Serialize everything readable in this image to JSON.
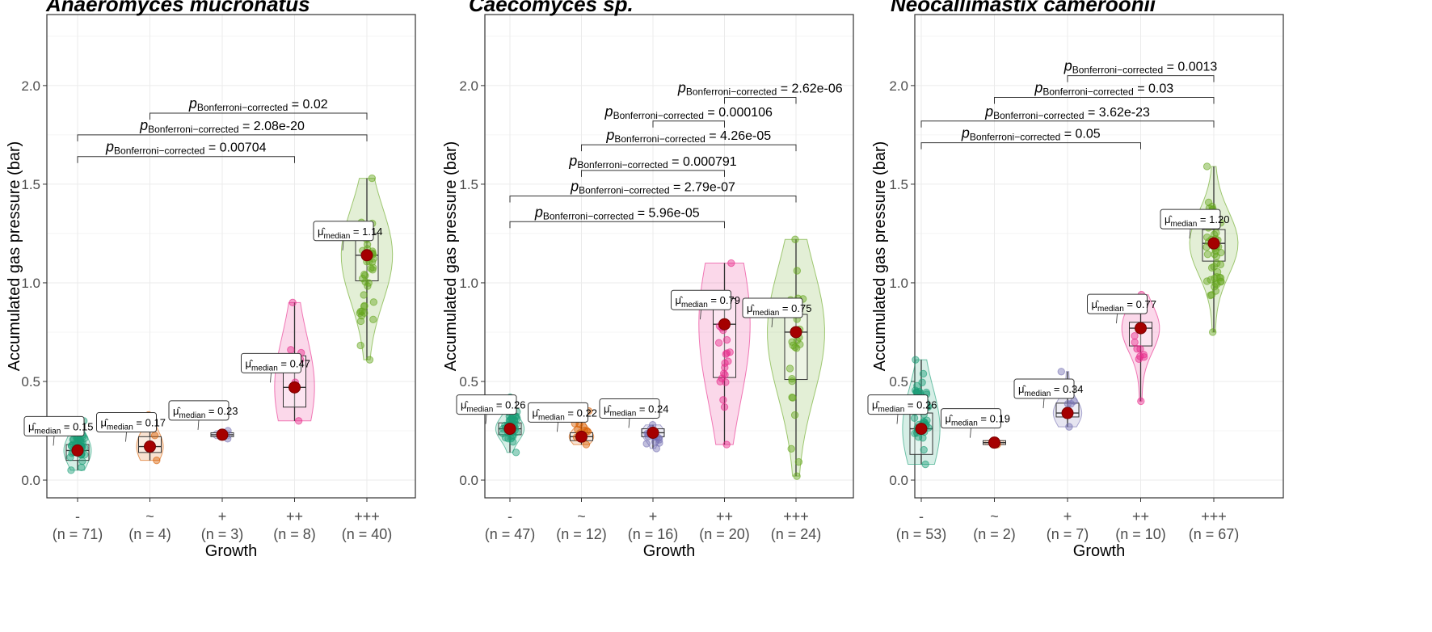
{
  "stat_label": {
    "p": "p",
    "sub": "Bonferroni−corrected",
    "mu_sub": "median"
  },
  "chart_data": [
    {
      "type": "violin-box-scatter",
      "title": "Anaeromyces mucronatus",
      "xlabel": "Growth",
      "ylabel": "Accumulated gas pressure (bar)",
      "ylim": [
        -0.09,
        2.36
      ],
      "yticks": [
        "0.0",
        "0.5",
        "1.0",
        "1.5",
        "2.0"
      ],
      "grid": true,
      "categories": [
        {
          "label": "-",
          "n": "(n = 71)",
          "median": 0.15,
          "q1": 0.1,
          "q3": 0.18,
          "min": 0.05,
          "max": 0.3,
          "color": "#1b9e77",
          "median_label": "0.15"
        },
        {
          "label": "~",
          "n": "(n = 4)",
          "median": 0.17,
          "q1": 0.14,
          "q3": 0.22,
          "min": 0.1,
          "max": 0.33,
          "color": "#d95f02",
          "median_label": "0.17"
        },
        {
          "label": "+",
          "n": "(n = 3)",
          "median": 0.23,
          "q1": 0.22,
          "q3": 0.24,
          "min": 0.21,
          "max": 0.25,
          "color": "#7570b3",
          "median_label": "0.23"
        },
        {
          "label": "++",
          "n": "(n = 8)",
          "median": 0.47,
          "q1": 0.37,
          "q3": 0.63,
          "min": 0.3,
          "max": 0.9,
          "color": "#e7298a",
          "median_label": "0.47"
        },
        {
          "label": "+++",
          "n": "(n = 40)",
          "median": 1.14,
          "q1": 1.01,
          "q3": 1.25,
          "min": 0.61,
          "max": 1.53,
          "color": "#66a61e",
          "median_label": "1.14"
        }
      ],
      "comparisons": [
        {
          "from": 2,
          "to": 5,
          "y": 1.86,
          "p": "0.02"
        },
        {
          "from": 1,
          "to": 5,
          "y": 1.75,
          "p": "2.08e-20"
        },
        {
          "from": 1,
          "to": 4,
          "y": 1.64,
          "p": "0.00704"
        }
      ]
    },
    {
      "type": "violin-box-scatter",
      "title": "Caecomyces sp.",
      "xlabel": "Growth",
      "ylabel": "Accumulated gas pressure (bar)",
      "ylim": [
        -0.09,
        2.36
      ],
      "yticks": [
        "0.0",
        "0.5",
        "1.0",
        "1.5",
        "2.0"
      ],
      "grid": true,
      "categories": [
        {
          "label": "-",
          "n": "(n = 47)",
          "median": 0.26,
          "q1": 0.23,
          "q3": 0.29,
          "min": 0.14,
          "max": 0.42,
          "color": "#1b9e77",
          "median_label": "0.26"
        },
        {
          "label": "~",
          "n": "(n = 12)",
          "median": 0.22,
          "q1": 0.2,
          "q3": 0.24,
          "min": 0.18,
          "max": 0.35,
          "color": "#d95f02",
          "median_label": "0.22"
        },
        {
          "label": "+",
          "n": "(n = 16)",
          "median": 0.24,
          "q1": 0.22,
          "q3": 0.26,
          "min": 0.16,
          "max": 0.28,
          "color": "#7570b3",
          "median_label": "0.24"
        },
        {
          "label": "++",
          "n": "(n = 20)",
          "median": 0.79,
          "q1": 0.52,
          "q3": 0.92,
          "min": 0.18,
          "max": 1.1,
          "color": "#e7298a",
          "median_label": "0.79"
        },
        {
          "label": "+++",
          "n": "(n = 24)",
          "median": 0.75,
          "q1": 0.51,
          "q3": 0.84,
          "min": 0.02,
          "max": 1.22,
          "color": "#66a61e",
          "median_label": "0.75"
        }
      ],
      "comparisons": [
        {
          "from": 4,
          "to": 5,
          "y": 1.94,
          "p": "2.62e-06"
        },
        {
          "from": 3,
          "to": 4,
          "y": 1.82,
          "p": "0.000106"
        },
        {
          "from": 2,
          "to": 5,
          "y": 1.7,
          "p": "4.26e-05"
        },
        {
          "from": 2,
          "to": 4,
          "y": 1.57,
          "p": "0.000791"
        },
        {
          "from": 1,
          "to": 5,
          "y": 1.44,
          "p": "2.79e-07"
        },
        {
          "from": 1,
          "to": 4,
          "y": 1.31,
          "p": "5.96e-05"
        }
      ]
    },
    {
      "type": "violin-box-scatter",
      "title": "Neocallimastix cameroonii",
      "xlabel": "Growth",
      "ylabel": "Accumulated gas pressure (bar)",
      "ylim": [
        -0.09,
        2.36
      ],
      "yticks": [
        "0.0",
        "0.5",
        "1.0",
        "1.5",
        "2.0"
      ],
      "grid": true,
      "categories": [
        {
          "label": "-",
          "n": "(n = 53)",
          "median": 0.26,
          "q1": 0.13,
          "q3": 0.34,
          "min": 0.08,
          "max": 0.61,
          "color": "#1b9e77",
          "median_label": "0.26"
        },
        {
          "label": "~",
          "n": "(n = 2)",
          "median": 0.19,
          "q1": 0.18,
          "q3": 0.2,
          "min": 0.18,
          "max": 0.2,
          "color": "#d95f02",
          "median_label": "0.19"
        },
        {
          "label": "+",
          "n": "(n = 7)",
          "median": 0.34,
          "q1": 0.32,
          "q3": 0.39,
          "min": 0.27,
          "max": 0.55,
          "color": "#7570b3",
          "median_label": "0.34"
        },
        {
          "label": "++",
          "n": "(n = 10)",
          "median": 0.77,
          "q1": 0.68,
          "q3": 0.8,
          "min": 0.4,
          "max": 0.94,
          "color": "#e7298a",
          "median_label": "0.77"
        },
        {
          "label": "+++",
          "n": "(n = 67)",
          "median": 1.2,
          "q1": 1.11,
          "q3": 1.27,
          "min": 0.75,
          "max": 1.59,
          "color": "#66a61e",
          "median_label": "1.20"
        }
      ],
      "comparisons": [
        {
          "from": 3,
          "to": 5,
          "y": 2.05,
          "p": "0.0013"
        },
        {
          "from": 2,
          "to": 5,
          "y": 1.94,
          "p": "0.03"
        },
        {
          "from": 1,
          "to": 5,
          "y": 1.82,
          "p": "3.62e-23"
        },
        {
          "from": 1,
          "to": 4,
          "y": 1.71,
          "p": "0.05"
        }
      ]
    }
  ]
}
